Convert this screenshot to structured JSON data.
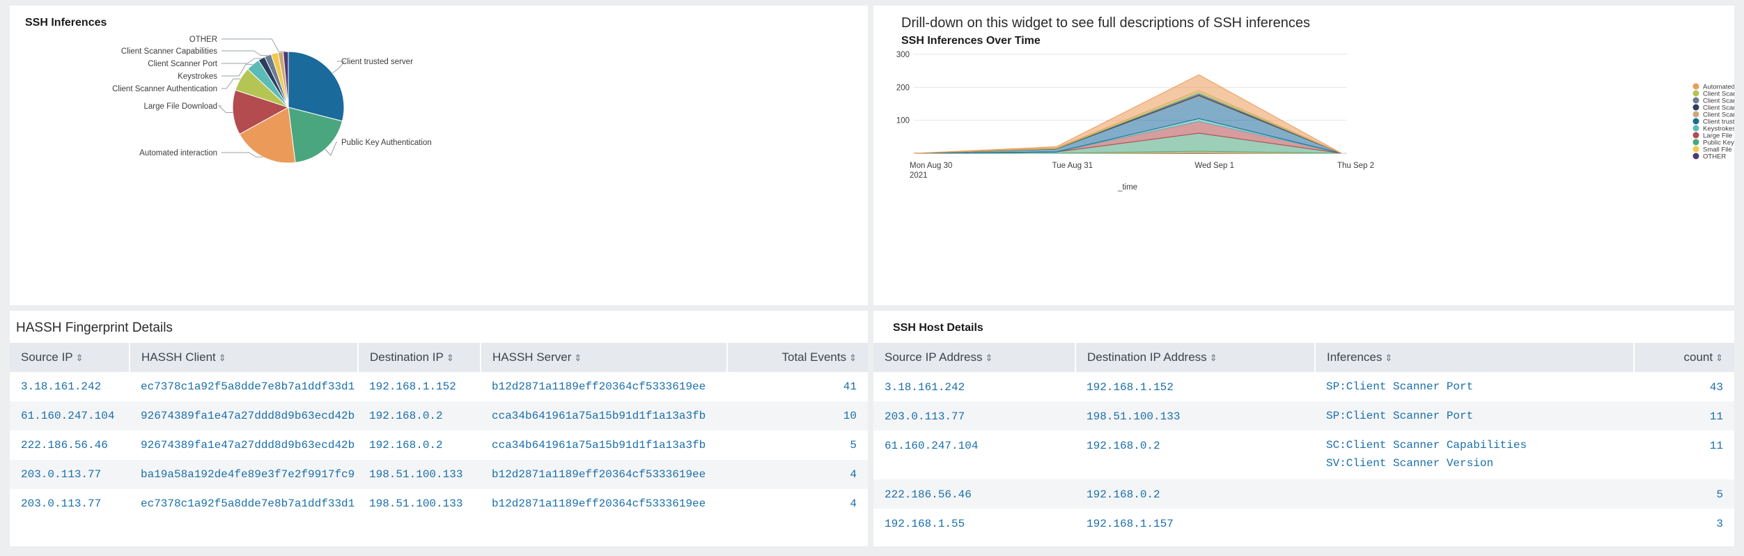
{
  "pie_panel": {
    "title": "SSH Inferences",
    "chart_data": {
      "type": "pie",
      "title": "SSH Inferences",
      "slices": [
        {
          "label": "Client trusted server",
          "value": 29,
          "color": "#1a6a9c"
        },
        {
          "label": "Public Key Authentication",
          "value": 19,
          "color": "#4aa67e"
        },
        {
          "label": "Automated interaction",
          "value": 19,
          "color": "#ec9a5a"
        },
        {
          "label": "Large File Download",
          "value": 13,
          "color": "#b44b4f"
        },
        {
          "label": "Client Scanner Authentication",
          "value": 7,
          "color": "#b5c553"
        },
        {
          "label": "Keystrokes",
          "value": 4,
          "color": "#5bbbb6"
        },
        {
          "label": "Client Scanner Port",
          "value": 2,
          "color": "#2c3e5e"
        },
        {
          "label": "Client Scanner Capabilities",
          "value": 2,
          "color": "#6b7c94"
        },
        {
          "label": "Small File Download",
          "value": 2,
          "color": "#f1c84b"
        },
        {
          "label": "Client Scanner Version",
          "value": 1.5,
          "color": "#c9a87a"
        },
        {
          "label": "OTHER",
          "value": 1.5,
          "color": "#4c3a72"
        }
      ],
      "labeled": [
        "Client trusted server",
        "Public Key Authentication",
        "Automated interaction",
        "Large File Download",
        "Client Scanner Authentication",
        "Keystrokes",
        "Client Scanner Port",
        "Client Scanner Capabilities",
        "OTHER"
      ]
    }
  },
  "area_panel": {
    "heading": "Drill-down on this widget to see full descriptions of SSH inferences",
    "chart_data": {
      "type": "area",
      "title": "SSH Inferences Over Time",
      "xlabel": "_time",
      "ylabel": "",
      "ylim": [
        0,
        300
      ],
      "yticks": [
        100,
        200,
        300
      ],
      "categories": [
        "Mon Aug 30",
        "Tue Aug 31",
        "Wed Sep 1",
        "Thu Sep 2"
      ],
      "category_sub": [
        "2021",
        "",
        "",
        ""
      ],
      "series": [
        {
          "name": "Automated interaction",
          "color": "#ec9a5a",
          "values": [
            0,
            4,
            48,
            0
          ]
        },
        {
          "name": "Client Scann...uthentication",
          "color": "#b5c553",
          "values": [
            0,
            2,
            6,
            0
          ]
        },
        {
          "name": "Client Scanner Capabilities",
          "color": "#6b7c94",
          "values": [
            0,
            0,
            5,
            0
          ]
        },
        {
          "name": "Client Scanner Port",
          "color": "#2c3e5e",
          "values": [
            0,
            1,
            4,
            0
          ]
        },
        {
          "name": "Client Scanner Version",
          "color": "#c9a87a",
          "values": [
            0,
            0,
            2,
            0
          ]
        },
        {
          "name": "Client trusted server",
          "color": "#1a6a9c",
          "values": [
            0,
            9,
            68,
            0
          ]
        },
        {
          "name": "Keystrokes",
          "color": "#5bbbb6",
          "values": [
            0,
            0,
            8,
            0
          ]
        },
        {
          "name": "Large File Download",
          "color": "#b44b4f",
          "values": [
            0,
            0,
            36,
            0
          ]
        },
        {
          "name": "Public Key Authentication",
          "color": "#4aa67e",
          "values": [
            0,
            4,
            55,
            0
          ]
        },
        {
          "name": "Small File Download",
          "color": "#f1c84b",
          "values": [
            0,
            0,
            4,
            0
          ]
        },
        {
          "name": "OTHER",
          "color": "#4c3a72",
          "values": [
            0,
            0,
            2,
            0
          ]
        }
      ]
    }
  },
  "hassh_panel": {
    "title": "HASSH Fingerprint Details",
    "columns": [
      "Source IP",
      "HASSH Client",
      "Destination IP",
      "HASSH Server",
      "Total Events"
    ],
    "rows": [
      [
        "3.18.161.242",
        "ec7378c1a92f5a8dde7e8b7a1ddf33d1",
        "192.168.1.152",
        "b12d2871a1189eff20364cf5333619ee",
        "41"
      ],
      [
        "61.160.247.104",
        "92674389fa1e47a27ddd8d9b63ecd42b",
        "192.168.0.2",
        "cca34b641961a75a15b91d1f1a13a3fb",
        "10"
      ],
      [
        "222.186.56.46",
        "92674389fa1e47a27ddd8d9b63ecd42b",
        "192.168.0.2",
        "cca34b641961a75a15b91d1f1a13a3fb",
        "5"
      ],
      [
        "203.0.113.77",
        "ba19a58a192de4fe89e3f7e2f9917fc9",
        "198.51.100.133",
        "b12d2871a1189eff20364cf5333619ee",
        "4"
      ],
      [
        "203.0.113.77",
        "ec7378c1a92f5a8dde7e8b7a1ddf33d1",
        "198.51.100.133",
        "b12d2871a1189eff20364cf5333619ee",
        "4"
      ]
    ]
  },
  "host_panel": {
    "title": "SSH Host Details",
    "columns": [
      "Source IP Address",
      "Destination IP Address",
      "Inferences",
      "count"
    ],
    "rows": [
      {
        "src": "3.18.161.242",
        "dst": "192.168.1.152",
        "inferences": [
          "SP:Client Scanner Port"
        ],
        "count": "43"
      },
      {
        "src": "203.0.113.77",
        "dst": "198.51.100.133",
        "inferences": [
          "SP:Client Scanner Port"
        ],
        "count": "11"
      },
      {
        "src": "61.160.247.104",
        "dst": "192.168.0.2",
        "inferences": [
          "SC:Client Scanner Capabilities",
          "SV:Client Scanner Version"
        ],
        "count": "11"
      },
      {
        "src": "222.186.56.46",
        "dst": "192.168.0.2",
        "inferences": [],
        "count": "5"
      },
      {
        "src": "192.168.1.55",
        "dst": "192.168.1.157",
        "inferences": [],
        "count": "3"
      }
    ]
  },
  "sort_glyph": "⇕"
}
